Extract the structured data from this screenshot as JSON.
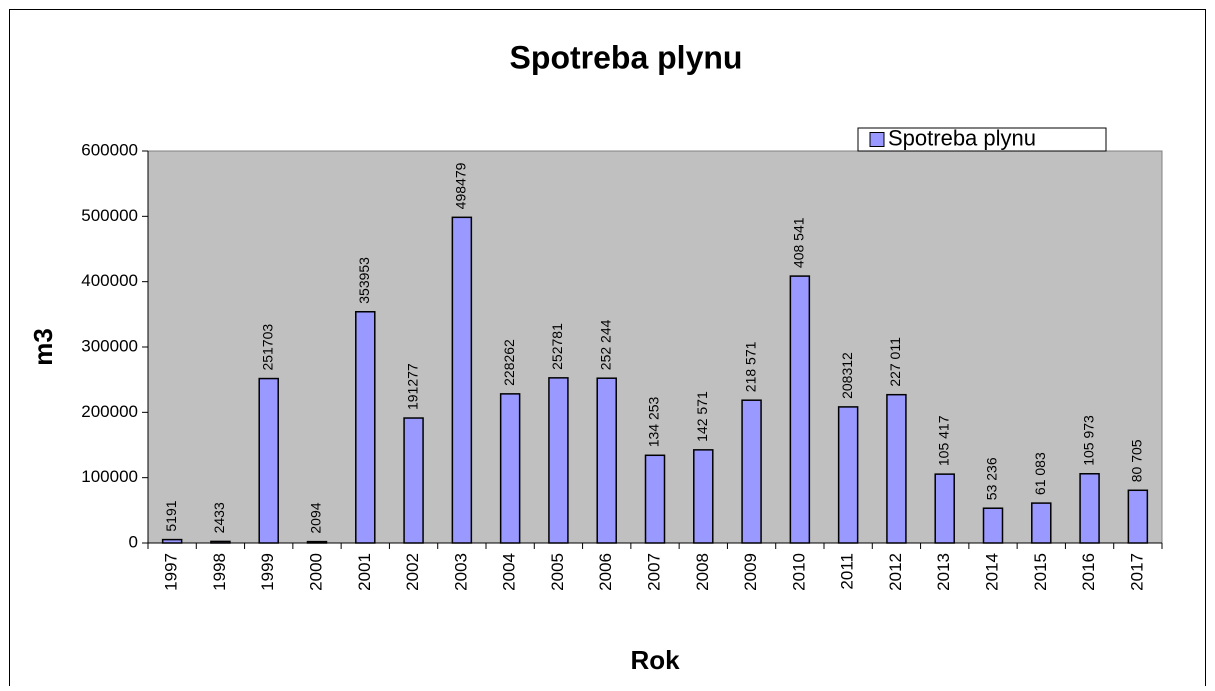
{
  "chart_data": {
    "type": "bar",
    "title": "Spotreba plynu",
    "x_label": "Rok",
    "y_label": "m3",
    "categories": [
      "1997",
      "1998",
      "1999",
      "2000",
      "2001",
      "2002",
      "2003",
      "2004",
      "2005",
      "2006",
      "2007",
      "2008",
      "2009",
      "2010",
      "2011",
      "2012",
      "2013",
      "2014",
      "2015",
      "2016",
      "2017"
    ],
    "series": [
      {
        "name": "Spotreba plynu",
        "color": "#9999ff",
        "values": [
          5191,
          2433,
          251703,
          2094,
          353953,
          191277,
          498479,
          228262,
          252781,
          252244,
          134253,
          142571,
          218571,
          408541,
          208312,
          227011,
          105417,
          53236,
          61083,
          105973,
          80705
        ],
        "value_labels": [
          "5191",
          "2433",
          "251703",
          "2094",
          "353953",
          "191277",
          "498479",
          "228262",
          "252781",
          "252 244",
          "134 253",
          "142 571",
          "218 571",
          "408 541",
          "208312",
          "227 011",
          "105 417",
          "53 236",
          "61 083",
          "105 973",
          "80 705"
        ]
      }
    ],
    "ylim": [
      0,
      600000
    ],
    "yticks": [
      0,
      100000,
      200000,
      300000,
      400000,
      500000,
      600000
    ],
    "grid": false,
    "legend": "top-right",
    "plot_background": "#c0c0c0"
  }
}
